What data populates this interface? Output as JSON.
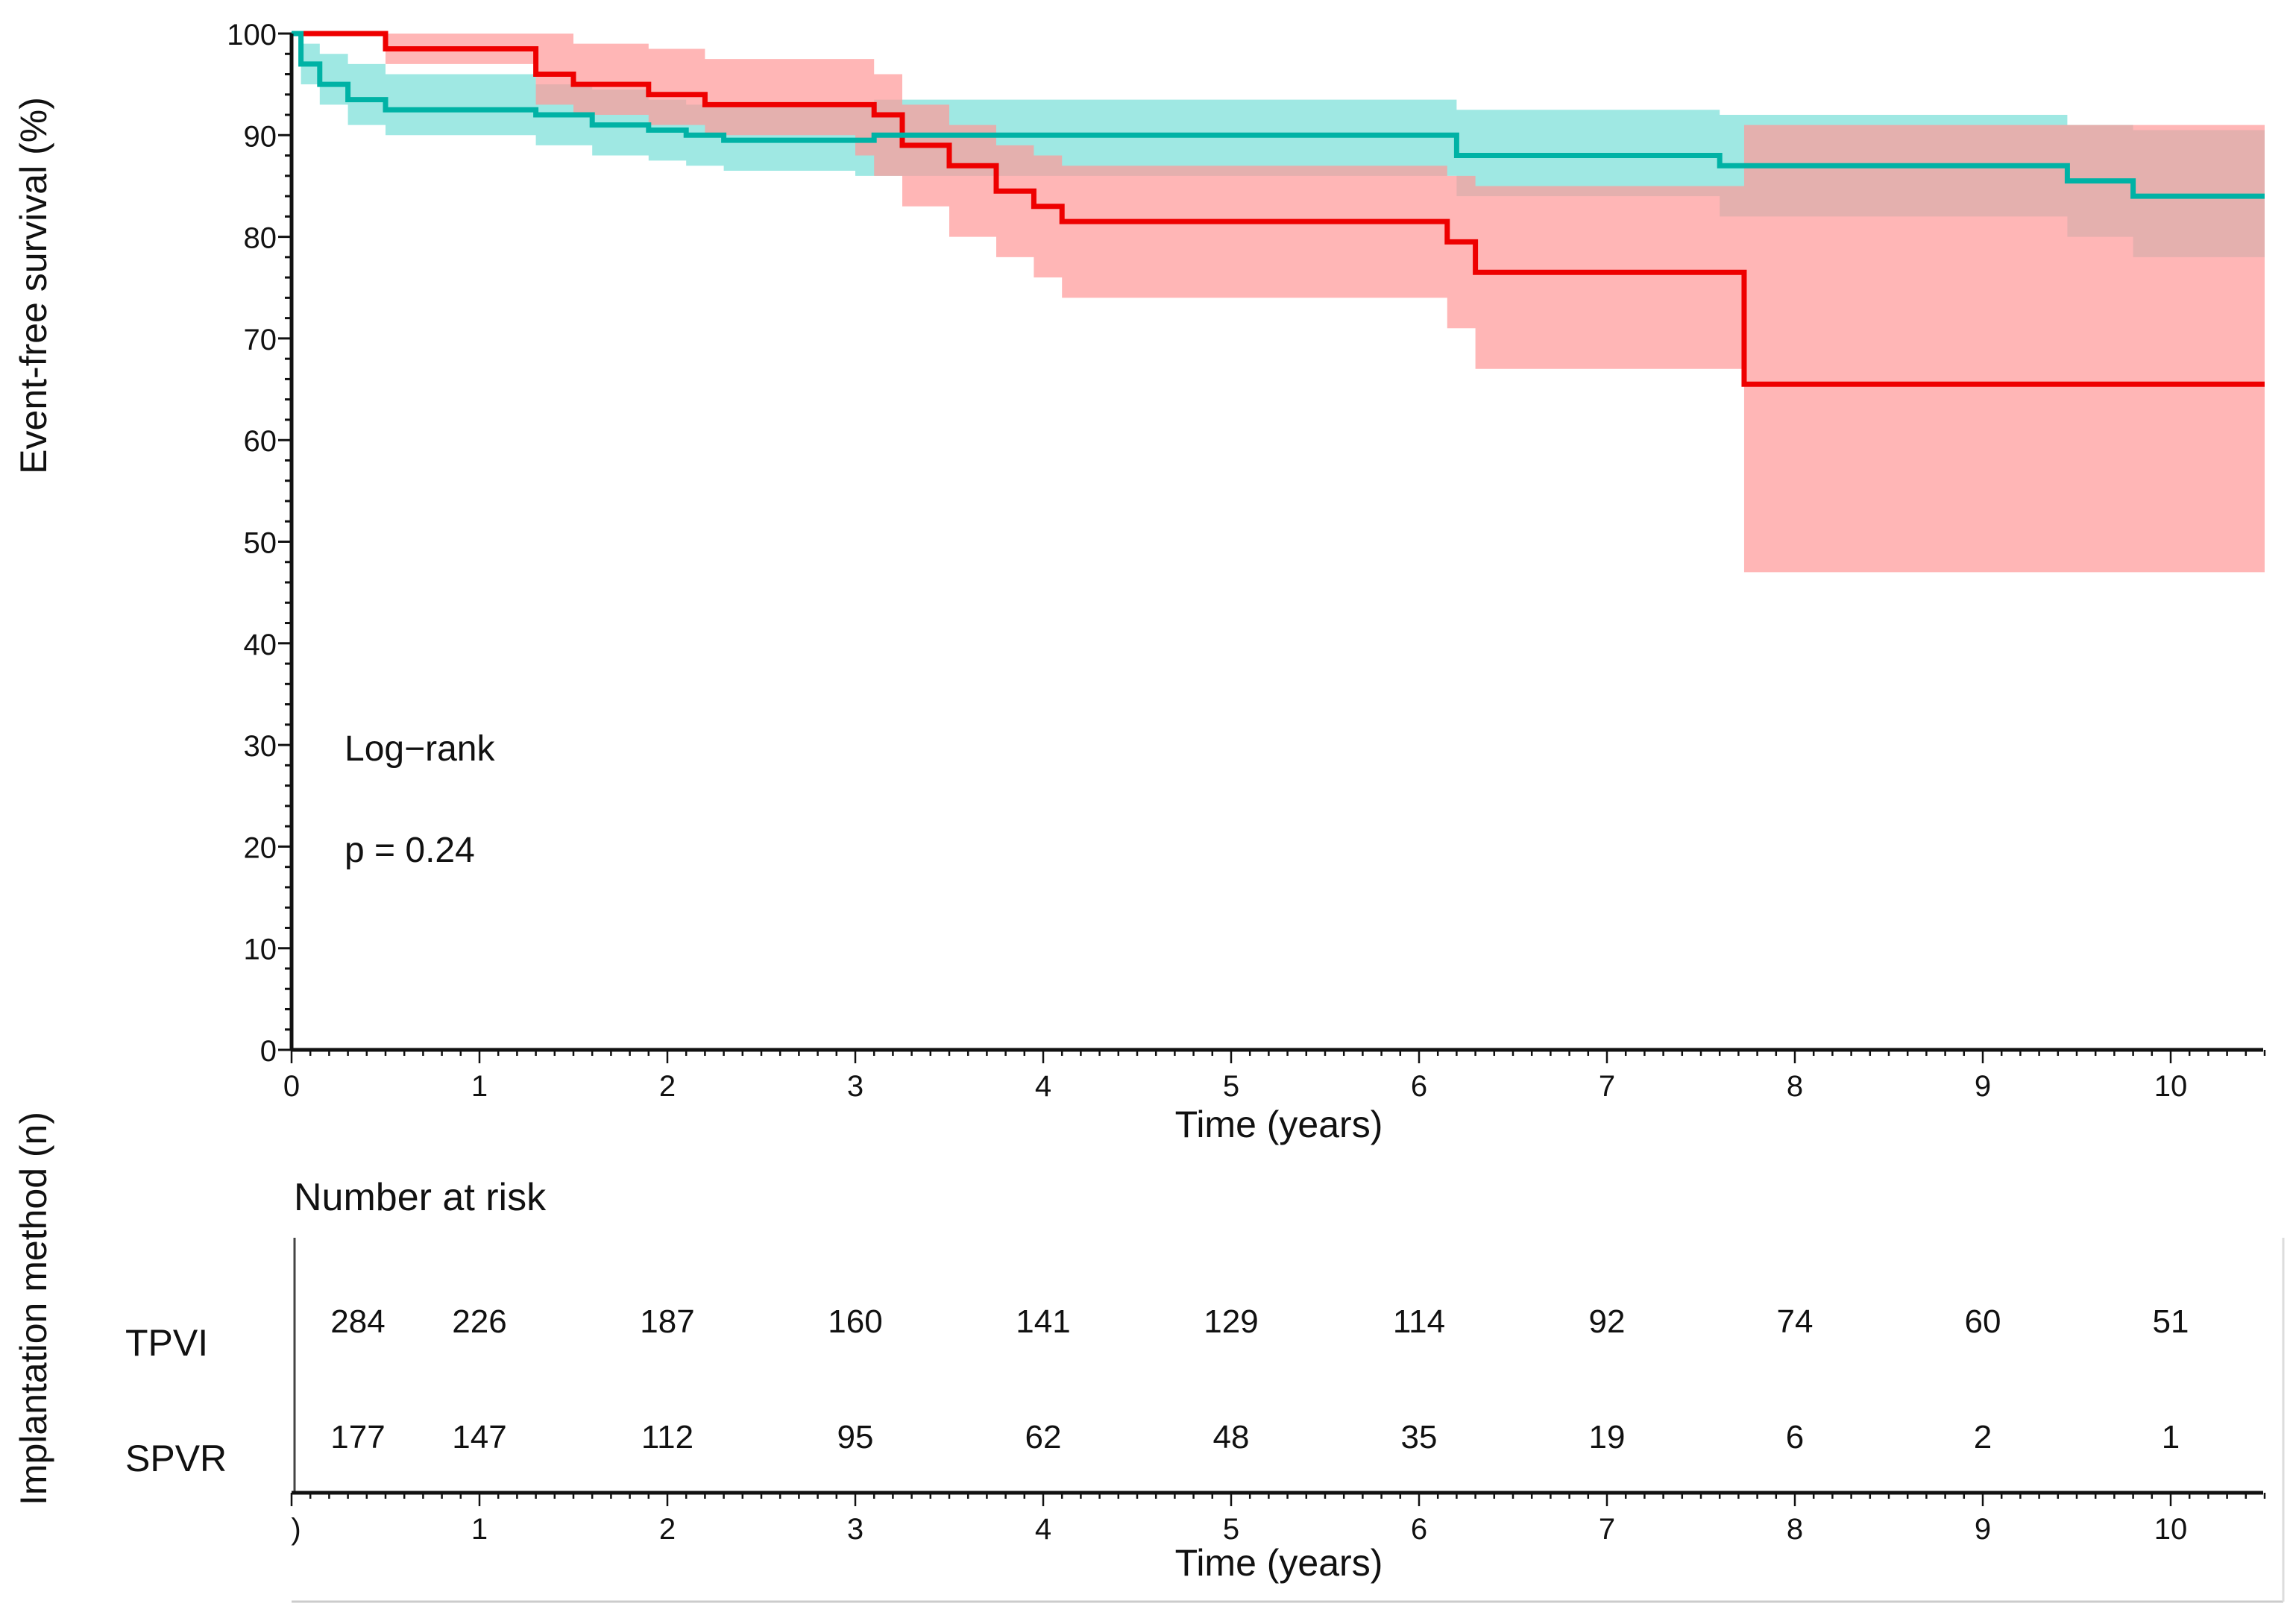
{
  "chart_data": {
    "type": "line",
    "subtype": "kaplan-meier",
    "title": "",
    "ylabel": "Event-free survival (%)",
    "xlabel": "Time (years)",
    "xlim": [
      0,
      10.5
    ],
    "ylim": [
      0,
      100
    ],
    "xticks": [
      0,
      1,
      2,
      3,
      4,
      5,
      6,
      7,
      8,
      9,
      10
    ],
    "yticks": [
      0,
      10,
      20,
      30,
      40,
      50,
      60,
      70,
      80,
      90,
      100
    ],
    "grid": false,
    "annotation": {
      "line1": "Log−rank",
      "line2": "p = 0.24"
    },
    "colors": {
      "red": "#ee0000",
      "red_band": "#ff9a9a",
      "teal": "#00b2a5",
      "teal_band": "#8ee4de"
    },
    "series": [
      {
        "color_key": "red",
        "steps": [
          [
            0,
            100
          ],
          [
            0.4,
            100
          ],
          [
            0.5,
            98.5
          ],
          [
            1.2,
            98.5
          ],
          [
            1.3,
            96
          ],
          [
            1.5,
            95
          ],
          [
            1.9,
            94
          ],
          [
            2.2,
            93
          ],
          [
            3.0,
            93
          ],
          [
            3.1,
            92
          ],
          [
            3.25,
            89
          ],
          [
            3.5,
            87
          ],
          [
            3.75,
            84.5
          ],
          [
            3.95,
            83
          ],
          [
            4.1,
            81.5
          ],
          [
            6.1,
            81.5
          ],
          [
            6.15,
            79.5
          ],
          [
            6.3,
            76.5
          ],
          [
            7.72,
            76.5
          ],
          [
            7.73,
            65.5
          ],
          [
            10.5,
            65.5
          ]
        ],
        "ci": [
          [
            0,
            100,
            100
          ],
          [
            0.4,
            100,
            100
          ],
          [
            0.5,
            100,
            97
          ],
          [
            1.2,
            100,
            97
          ],
          [
            1.3,
            100,
            93
          ],
          [
            1.5,
            99,
            92
          ],
          [
            1.9,
            98.5,
            91
          ],
          [
            2.2,
            97.5,
            90
          ],
          [
            3.0,
            97.5,
            88
          ],
          [
            3.1,
            96,
            86
          ],
          [
            3.25,
            93,
            83
          ],
          [
            3.5,
            91,
            80
          ],
          [
            3.75,
            89,
            78
          ],
          [
            3.95,
            88,
            76
          ],
          [
            4.1,
            87,
            74
          ],
          [
            6.1,
            87,
            74
          ],
          [
            6.15,
            86,
            71
          ],
          [
            6.3,
            85,
            67
          ],
          [
            7.72,
            85,
            67
          ],
          [
            7.73,
            91,
            47
          ],
          [
            10.5,
            91,
            47
          ]
        ]
      },
      {
        "color_key": "teal",
        "steps": [
          [
            0,
            100
          ],
          [
            0.05,
            97
          ],
          [
            0.15,
            95
          ],
          [
            0.3,
            93.5
          ],
          [
            0.5,
            92.5
          ],
          [
            1.3,
            92
          ],
          [
            1.6,
            91
          ],
          [
            1.9,
            90.5
          ],
          [
            2.1,
            90
          ],
          [
            2.3,
            89.5
          ],
          [
            3.0,
            89.5
          ],
          [
            3.1,
            90
          ],
          [
            6.1,
            90
          ],
          [
            6.2,
            88
          ],
          [
            7.55,
            88
          ],
          [
            7.6,
            87
          ],
          [
            9.4,
            87
          ],
          [
            9.45,
            85.5
          ],
          [
            9.75,
            85.5
          ],
          [
            9.8,
            84
          ],
          [
            10.5,
            84
          ]
        ],
        "ci": [
          [
            0,
            100,
            100
          ],
          [
            0.05,
            99,
            95
          ],
          [
            0.15,
            98,
            93
          ],
          [
            0.3,
            97,
            91
          ],
          [
            0.5,
            96,
            90
          ],
          [
            1.3,
            95,
            89
          ],
          [
            1.6,
            94.5,
            88
          ],
          [
            1.9,
            93.5,
            87.5
          ],
          [
            2.1,
            93,
            87
          ],
          [
            2.3,
            93,
            86.5
          ],
          [
            3.0,
            93,
            86
          ],
          [
            3.1,
            93.5,
            86
          ],
          [
            6.1,
            93.5,
            86
          ],
          [
            6.2,
            92.5,
            84
          ],
          [
            7.55,
            92.5,
            84
          ],
          [
            7.6,
            92,
            82
          ],
          [
            9.4,
            92,
            82
          ],
          [
            9.45,
            91,
            80
          ],
          [
            9.75,
            91,
            80
          ],
          [
            9.8,
            90.5,
            78
          ],
          [
            10.5,
            90.5,
            78
          ]
        ]
      }
    ],
    "risk_table": {
      "title": "Number at risk",
      "ylabel": "Implantation method (n)",
      "xlabel": "Time (years)",
      "xtick_labels": [
        ")",
        "1",
        "2",
        "3",
        "4",
        "5",
        "6",
        "7",
        "8",
        "9",
        "10"
      ],
      "rows": [
        {
          "label": "TPVI",
          "values": [
            284,
            226,
            187,
            160,
            141,
            129,
            114,
            92,
            74,
            60,
            51
          ]
        },
        {
          "label": "SPVR",
          "values": [
            177,
            147,
            112,
            95,
            62,
            48,
            35,
            19,
            6,
            2,
            1
          ]
        }
      ]
    }
  }
}
